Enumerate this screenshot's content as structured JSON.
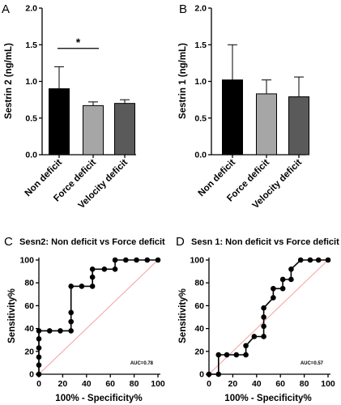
{
  "chart_data": [
    {
      "type": "bar",
      "panel": "A",
      "ylabel": "Sestrin 2 (ng/mL)",
      "ylim": [
        0,
        2
      ],
      "yticks": [
        "0.0",
        "0.5",
        "1.0",
        "1.5",
        "2.0"
      ],
      "ytick_values": [
        0,
        0.5,
        1.0,
        1.5,
        2.0
      ],
      "categories": [
        "Non deficit",
        "Force deficit",
        "Velocity deficit"
      ],
      "values": [
        0.9,
        0.67,
        0.7
      ],
      "error_upper": [
        1.2,
        0.72,
        0.75
      ],
      "colors": [
        "#000000",
        "#a6a6a6",
        "#5a5a5a"
      ],
      "significance": {
        "label": "*",
        "from": 0,
        "to": 1
      }
    },
    {
      "type": "bar",
      "panel": "B",
      "ylabel": "Sestrin 1 (ng/mL)",
      "ylim": [
        0,
        2
      ],
      "yticks": [
        "0.0",
        "0.5",
        "1.0",
        "1.5",
        "2.0"
      ],
      "ytick_values": [
        0,
        0.5,
        1.0,
        1.5,
        2.0
      ],
      "categories": [
        "Non deficit",
        "Force deficit",
        "Velocity deficit"
      ],
      "values": [
        1.02,
        0.83,
        0.79
      ],
      "error_upper": [
        1.5,
        1.02,
        1.06
      ],
      "colors": [
        "#000000",
        "#a6a6a6",
        "#5a5a5a"
      ]
    },
    {
      "type": "line",
      "panel": "C",
      "title": "Sesn2: Non deficit vs Force deficit",
      "xlabel": "100% - Specificity%",
      "ylabel": "Sensitivity%",
      "xlim": [
        0,
        100
      ],
      "ylim": [
        0,
        100
      ],
      "ticks": [
        "0",
        "20",
        "40",
        "60",
        "80",
        "100"
      ],
      "tick_values": [
        0,
        20,
        40,
        60,
        80,
        100
      ],
      "auc_label": "AUC=0.78",
      "x": [
        0,
        0,
        0,
        0,
        0,
        0,
        9,
        18,
        27,
        27,
        27,
        27,
        36,
        45,
        45,
        45,
        55,
        64,
        64,
        73,
        82,
        91,
        100
      ],
      "y": [
        0,
        8,
        15,
        23,
        31,
        38,
        38,
        38,
        38,
        46,
        54,
        77,
        77,
        77,
        85,
        92,
        92,
        92,
        100,
        100,
        100,
        100,
        100
      ],
      "reference_line_color": "#f4a0a0"
    },
    {
      "type": "line",
      "panel": "D",
      "title": "Sesn 1: Non deficit vs Force deficit",
      "xlabel": "100% - Specificity%",
      "ylabel": "Sensitivity%",
      "xlim": [
        0,
        100
      ],
      "ylim": [
        0,
        100
      ],
      "ticks": [
        "0",
        "20",
        "40",
        "60",
        "80",
        "100"
      ],
      "tick_values": [
        0,
        20,
        40,
        60,
        80,
        100
      ],
      "auc_label": "AUC=0.57",
      "x": [
        0,
        8,
        8,
        15,
        23,
        31,
        31,
        38,
        46,
        46,
        46,
        46,
        54,
        54,
        62,
        62,
        69,
        69,
        77,
        85,
        92,
        100
      ],
      "y": [
        0,
        0,
        17,
        17,
        17,
        17,
        25,
        33,
        33,
        42,
        50,
        58,
        67,
        75,
        75,
        83,
        83,
        92,
        100,
        100,
        100,
        100
      ],
      "reference_line_color": "#f4a0a0"
    }
  ]
}
